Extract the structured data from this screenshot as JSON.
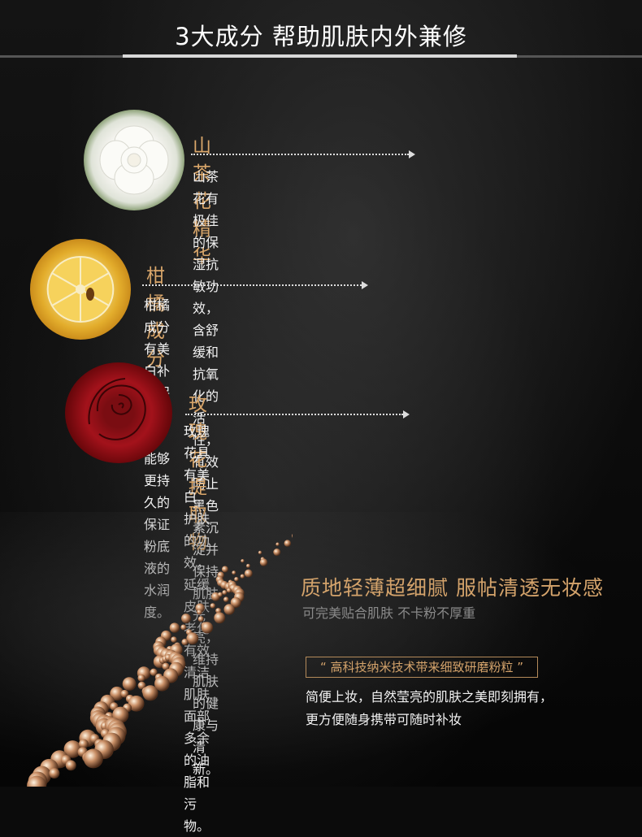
{
  "header": {
    "title": "3大成分 帮助肌肤内外兼修"
  },
  "ingredients": [
    {
      "name": "山茶花精华",
      "icon": "camellia-flower",
      "lines": [
        "山茶花有极佳的保湿抗敏功效，含舒缓和抗氧化的活性，",
        "有效防止黑色素沉淀并保持肌肤光亮，维持肌肤的健康与清新。"
      ]
    },
    {
      "name": "柑橘成分",
      "icon": "citrus-slice",
      "lines": [
        "柑橘成分有美白补水保湿效果，能够更持久的保证粉底液的水润度。"
      ]
    },
    {
      "name": "玫瑰花提取物",
      "icon": "red-rose",
      "lines": [
        "玫瑰花具有美白 护肤的功效，延缓皮肤老化 有效清洁肌肤面部",
        "多余的油脂和污物。"
      ]
    }
  ],
  "texture": {
    "headline": "质地轻薄超细腻 服帖清透无妆感",
    "subline": "可完美贴合肌肤 不卡粉不厚重",
    "quote": "“ 高科技纳米技术带来细致研磨粉粒 ”",
    "lines": [
      "简便上妆，自然莹亮的肌肤之美即刻拥有，",
      "更方便随身携带可随时补妆"
    ]
  },
  "colors": {
    "accent": "#d9a66a",
    "background": "#0b0b0b"
  }
}
